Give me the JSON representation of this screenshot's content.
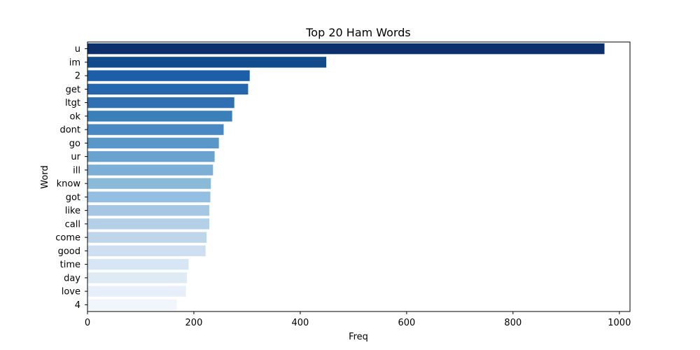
{
  "chart_data": {
    "type": "bar",
    "orientation": "horizontal",
    "title": "Top 20 Ham Words",
    "xlabel": "Freq",
    "ylabel": "Word",
    "xlim": [
      0,
      1020
    ],
    "xticks": [
      0,
      200,
      400,
      600,
      800,
      1000
    ],
    "grid": false,
    "palette": "Blues (dark to light)",
    "categories": [
      "u",
      "im",
      "2",
      "get",
      "ltgt",
      "ok",
      "dont",
      "go",
      "ur",
      "ill",
      "know",
      "got",
      "like",
      "call",
      "come",
      "good",
      "time",
      "day",
      "love",
      "4"
    ],
    "values": [
      972,
      449,
      305,
      302,
      276,
      272,
      256,
      247,
      239,
      236,
      232,
      231,
      229,
      229,
      224,
      222,
      190,
      187,
      185,
      168
    ],
    "colors": [
      "#0b306b",
      "#114b8b",
      "#1c5ea8",
      "#2666ac",
      "#3070b2",
      "#3b7fb9",
      "#4988c3",
      "#5a97c8",
      "#6aa3d0",
      "#7daed6",
      "#8bbad9",
      "#95bfe2",
      "#a7c6e3",
      "#b4d0e7",
      "#bfd6ea",
      "#cedff1",
      "#d7e6f4",
      "#deebf5",
      "#e7f0f8",
      "#f1f6fc"
    ]
  }
}
